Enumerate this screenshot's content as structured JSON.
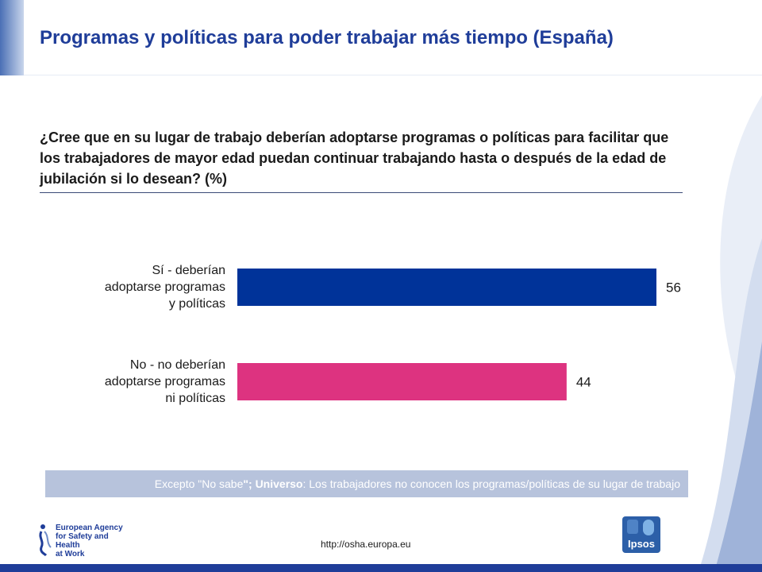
{
  "header": {
    "title": "Programas y políticas para poder trabajar más tiempo (España)"
  },
  "question": "¿Cree que en su lugar de trabajo deberían adoptarse programas o políticas para facilitar que los trabajadores de mayor edad puedan continuar trabajando hasta o después de la edad de jubilación si lo desean? (%)",
  "colors": {
    "title": "#1f3d99",
    "bar_yes": "#003399",
    "bar_no": "#dd3380",
    "note_bg": "#b7c3dc"
  },
  "chart_data": {
    "type": "bar",
    "orientation": "horizontal",
    "categories": [
      "Sí - deberían adoptarse programas y políticas",
      "No - no deberían adoptarse programas ni políticas"
    ],
    "category_lines": [
      [
        "Sí - deberían",
        "adoptarse programas",
        "y políticas"
      ],
      [
        "No - no deberían",
        "adoptarse programas",
        "ni políticas"
      ]
    ],
    "values": [
      56,
      44
    ],
    "data_labels": [
      "56",
      "44"
    ],
    "title": "",
    "xlabel": "",
    "ylabel": "",
    "xlim": [
      0,
      56
    ],
    "grid": false,
    "legend": "none"
  },
  "note": {
    "prefix": "Excepto \"No sabe",
    "bold": "\"; Universo",
    "rest": ": Los trabajadores no conocen los programas/políticas de su lugar de trabajo"
  },
  "footer": {
    "agency_logo_lines": [
      "European Agency",
      "for Safety and Health",
      "at Work"
    ],
    "url": "http://osha.europa.eu",
    "ipsos_logo": "Ipsos"
  }
}
